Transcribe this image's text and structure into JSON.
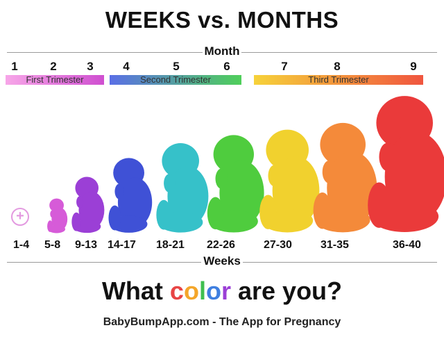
{
  "title": "WEEKS vs. MONTHS",
  "month_axis_label": "Month",
  "weeks_axis_label": "Weeks",
  "months": [
    "1",
    "2",
    "3",
    "4",
    "5",
    "6",
    "7",
    "8",
    "9"
  ],
  "trimesters": [
    {
      "label": "First Trimester",
      "color_start": "#f7a6e8",
      "color_end": "#cf4fd0"
    },
    {
      "label": "Second Trimester",
      "color_start": "#5a6fe6",
      "color_end": "#4fcf5a"
    },
    {
      "label": "Third Trimester",
      "color_start": "#f6d23a",
      "color_end": "#f0553f"
    }
  ],
  "plus_icon": "plus-circle-icon",
  "stages": [
    {
      "weeks": "1-4",
      "color": "#e39ae0"
    },
    {
      "weeks": "5-8",
      "color": "#d65bd8"
    },
    {
      "weeks": "9-13",
      "color": "#9b3fd6"
    },
    {
      "weeks": "14-17",
      "color": "#3f51d6"
    },
    {
      "weeks": "18-21",
      "color": "#36c1c9"
    },
    {
      "weeks": "22-26",
      "color": "#4fcc3e"
    },
    {
      "weeks": "27-30",
      "color": "#f1d12e"
    },
    {
      "weeks": "31-35",
      "color": "#f48a3a"
    },
    {
      "weeks": "36-40",
      "color": "#ea3a3a"
    }
  ],
  "question": {
    "before": "What ",
    "color_word": "color",
    "after": " are you?",
    "word_colors": [
      "#e84545",
      "#f4a62a",
      "#3fbf4f",
      "#3f7fe0",
      "#9b3fd6"
    ]
  },
  "footer": "BabyBumpApp.com - The App for Pregnancy"
}
